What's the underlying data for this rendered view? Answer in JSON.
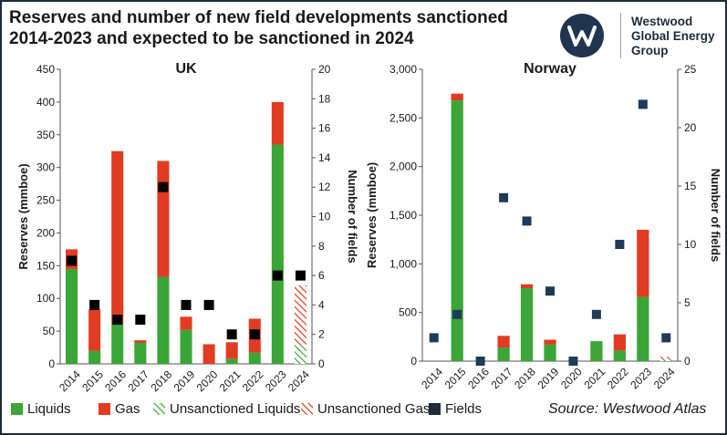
{
  "title": "Reserves and number of new field developments sanctioned 2014-2023 and expected to be sanctioned in 2024",
  "logo": {
    "icon": "w-monogram-icon",
    "line1": "Westwood",
    "line2": "Global Energy",
    "line3": "Group"
  },
  "source": "Source: Westwood Atlas",
  "legend": {
    "liquids": "Liquids",
    "gas": "Gas",
    "unsanctioned_liquids": "Unsanctioned Liquids",
    "unsanctioned_gas": "Unsanctioned Gas",
    "fields": "Fields"
  },
  "colors": {
    "liquids": "#3aa637",
    "gas": "#e13b22",
    "fields_uk": "#000000",
    "fields_norway": "#1f3b5c",
    "grid": "#9a9a9a",
    "border": "#1f2b38"
  },
  "chart_data": [
    {
      "type": "bar",
      "title": "UK",
      "stacked": true,
      "categories": [
        "2014",
        "2015",
        "2016",
        "2017",
        "2018",
        "2019",
        "2020",
        "2021",
        "2022",
        "2023",
        "2024"
      ],
      "ylabel": "Reserves (mmboe)",
      "ylim": [
        0,
        450
      ],
      "yticks": [
        0,
        50,
        100,
        150,
        200,
        250,
        300,
        350,
        400,
        450
      ],
      "ytick_labels": [
        "0",
        "50",
        "100",
        "150",
        "200",
        "250",
        "300",
        "350",
        "400",
        "450"
      ],
      "y2label": "Number of fields",
      "y2lim": [
        0,
        20
      ],
      "y2ticks": [
        0,
        2,
        4,
        6,
        8,
        10,
        12,
        14,
        16,
        18,
        20
      ],
      "y2tick_labels": [
        "0",
        "2",
        "4",
        "6",
        "8",
        "10",
        "12",
        "14",
        "16",
        "18",
        "20"
      ],
      "series": [
        {
          "name": "Liquids",
          "values": [
            145,
            20,
            60,
            32,
            133,
            52,
            0,
            8,
            17,
            335,
            0
          ]
        },
        {
          "name": "Gas",
          "values": [
            30,
            63,
            265,
            4,
            177,
            20,
            30,
            25,
            52,
            65,
            0
          ]
        },
        {
          "name": "Unsanctioned Liquids",
          "values": [
            0,
            0,
            0,
            0,
            0,
            0,
            0,
            0,
            0,
            0,
            28
          ]
        },
        {
          "name": "Unsanctioned Gas",
          "values": [
            0,
            0,
            0,
            0,
            0,
            0,
            0,
            0,
            0,
            0,
            92
          ]
        },
        {
          "name": "Fields",
          "axis": "secondary",
          "values": [
            7,
            4,
            3,
            3,
            12,
            4,
            4,
            2,
            2,
            6,
            6
          ]
        }
      ]
    },
    {
      "type": "bar",
      "title": "Norway",
      "stacked": true,
      "categories": [
        "2014",
        "2015",
        "2016",
        "2017",
        "2018",
        "2019",
        "2020",
        "2021",
        "2022",
        "2023",
        "2024"
      ],
      "ylabel": "Reserves (mmboe)",
      "ylim": [
        0,
        3000
      ],
      "yticks": [
        0,
        500,
        1000,
        1500,
        2000,
        2500,
        3000
      ],
      "ytick_labels": [
        "0",
        "500",
        "1,000",
        "1,500",
        "2,000",
        "2,500",
        "3,000"
      ],
      "y2label": "Number of fields",
      "y2lim": [
        0,
        25
      ],
      "y2ticks": [
        0,
        5,
        10,
        15,
        20,
        25
      ],
      "y2tick_labels": [
        "0",
        "5",
        "10",
        "15",
        "20",
        "25"
      ],
      "series": [
        {
          "name": "Liquids",
          "values": [
            0,
            2680,
            0,
            140,
            750,
            170,
            0,
            205,
            110,
            660,
            0
          ]
        },
        {
          "name": "Gas",
          "values": [
            0,
            70,
            0,
            120,
            40,
            50,
            0,
            0,
            165,
            690,
            0
          ]
        },
        {
          "name": "Unsanctioned Liquids",
          "values": [
            0,
            0,
            0,
            0,
            0,
            0,
            0,
            0,
            0,
            0,
            20
          ]
        },
        {
          "name": "Unsanctioned Gas",
          "values": [
            0,
            0,
            0,
            0,
            0,
            0,
            0,
            0,
            0,
            0,
            25
          ]
        },
        {
          "name": "Fields",
          "axis": "secondary",
          "values": [
            2,
            4,
            0,
            14,
            12,
            6,
            0,
            4,
            10,
            22,
            2
          ]
        }
      ]
    }
  ]
}
